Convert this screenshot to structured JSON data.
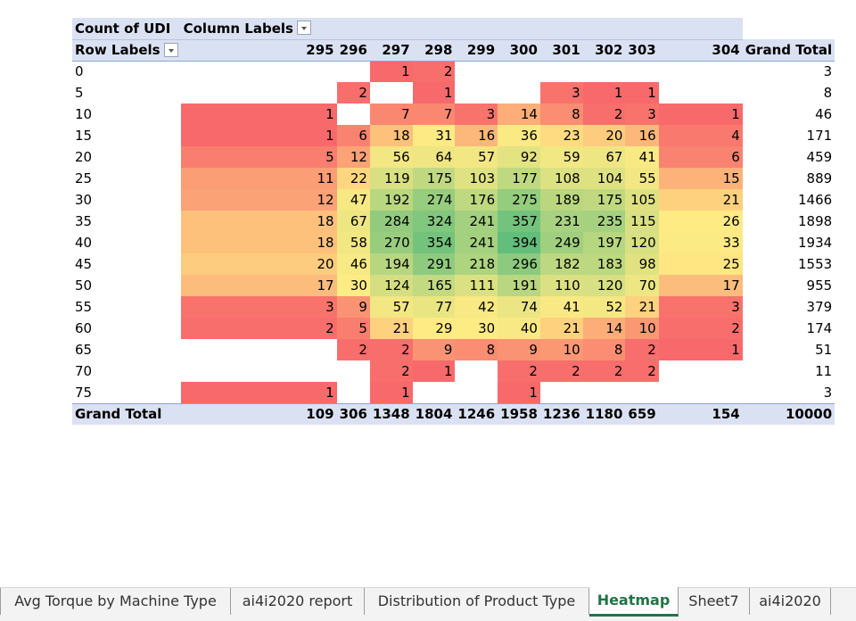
{
  "pivot": {
    "value_header": "Count of UDI",
    "column_labels": "Column Labels",
    "row_labels": "Row Labels",
    "columns": [
      "295",
      "296",
      "297",
      "298",
      "299",
      "300",
      "301",
      "302",
      "303",
      "304"
    ],
    "grand_total_label": "Grand Total",
    "rows": [
      {
        "label": "0",
        "values": [
          null,
          null,
          1,
          2,
          null,
          null,
          null,
          null,
          null,
          null
        ],
        "total": "3"
      },
      {
        "label": "5",
        "values": [
          null,
          2,
          null,
          1,
          null,
          null,
          3,
          1,
          1,
          null
        ],
        "total": "8"
      },
      {
        "label": "10",
        "values": [
          1,
          null,
          7,
          7,
          3,
          14,
          8,
          2,
          3,
          1
        ],
        "total": "46"
      },
      {
        "label": "15",
        "values": [
          1,
          6,
          18,
          31,
          16,
          36,
          23,
          20,
          16,
          4
        ],
        "total": "171"
      },
      {
        "label": "20",
        "values": [
          5,
          12,
          56,
          64,
          57,
          92,
          59,
          67,
          41,
          6
        ],
        "total": "459"
      },
      {
        "label": "25",
        "values": [
          11,
          22,
          119,
          175,
          103,
          177,
          108,
          104,
          55,
          15
        ],
        "total": "889"
      },
      {
        "label": "30",
        "values": [
          12,
          47,
          192,
          274,
          176,
          275,
          189,
          175,
          105,
          21
        ],
        "total": "1466"
      },
      {
        "label": "35",
        "values": [
          18,
          67,
          284,
          324,
          241,
          357,
          231,
          235,
          115,
          26
        ],
        "total": "1898"
      },
      {
        "label": "40",
        "values": [
          18,
          58,
          270,
          354,
          241,
          394,
          249,
          197,
          120,
          33
        ],
        "total": "1934"
      },
      {
        "label": "45",
        "values": [
          20,
          46,
          194,
          291,
          218,
          296,
          182,
          183,
          98,
          25
        ],
        "total": "1553"
      },
      {
        "label": "50",
        "values": [
          17,
          30,
          124,
          165,
          111,
          191,
          110,
          120,
          70,
          17
        ],
        "total": "955"
      },
      {
        "label": "55",
        "values": [
          3,
          9,
          57,
          77,
          42,
          74,
          41,
          52,
          21,
          3
        ],
        "total": "379"
      },
      {
        "label": "60",
        "values": [
          2,
          5,
          21,
          29,
          30,
          40,
          21,
          14,
          10,
          2
        ],
        "total": "174"
      },
      {
        "label": "65",
        "values": [
          null,
          2,
          2,
          9,
          8,
          9,
          10,
          8,
          2,
          1
        ],
        "total": "51"
      },
      {
        "label": "70",
        "values": [
          null,
          null,
          2,
          1,
          null,
          2,
          2,
          2,
          2,
          null
        ],
        "total": "11"
      },
      {
        "label": "75",
        "values": [
          1,
          null,
          1,
          null,
          null,
          1,
          null,
          null,
          null,
          null
        ],
        "total": "3"
      }
    ],
    "column_totals": [
      "109",
      "306",
      "1348",
      "1804",
      "1246",
      "1958",
      "1236",
      "1180",
      "659",
      "154"
    ],
    "grand_total": "10000",
    "color_scale": {
      "low": "#f8696b",
      "mid": "#ffeb84",
      "high": "#63be7b"
    }
  },
  "sheet_tabs": [
    {
      "label": "Avg Torque by Machine Type",
      "active": false
    },
    {
      "label": "ai4i2020 report",
      "active": false
    },
    {
      "label": "Distribution of Product Type",
      "active": false
    },
    {
      "label": "Heatmap",
      "active": true
    },
    {
      "label": "Sheet7",
      "active": false
    },
    {
      "label": "ai4i2020",
      "active": false
    }
  ]
}
